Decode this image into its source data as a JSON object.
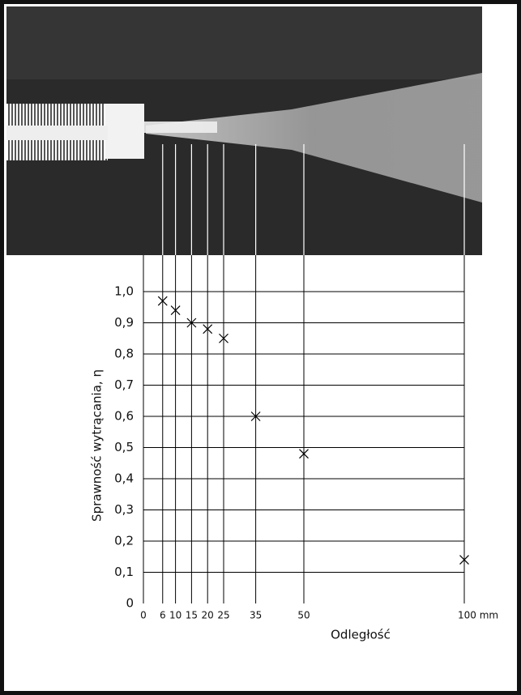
{
  "chart_data": {
    "type": "scatter",
    "x_label": "Odległość",
    "y_label": "Sprawność wytrącania, η",
    "x": [
      6,
      10,
      15,
      20,
      25,
      35,
      50,
      100
    ],
    "values": [
      0.97,
      0.94,
      0.9,
      0.88,
      0.85,
      0.6,
      0.48,
      0.14
    ],
    "color": "#000000",
    "xlim": [
      0,
      100
    ],
    "ylim": [
      0,
      1.0
    ],
    "xticks": [
      0,
      6,
      10,
      15,
      20,
      25,
      35,
      50,
      {
        "value": 100,
        "label": "100 mm"
      }
    ],
    "yticks": [
      0,
      {
        "value": 0.1,
        "label": "0,1"
      },
      {
        "value": 0.2,
        "label": "0,2"
      },
      {
        "value": 0.3,
        "label": "0,3"
      },
      {
        "value": 0.4,
        "label": "0,4"
      },
      {
        "value": 0.5,
        "label": "0,5"
      },
      {
        "value": 0.6,
        "label": "0,6"
      },
      {
        "value": 0.7,
        "label": "0,7"
      },
      {
        "value": 0.8,
        "label": "0,8"
      },
      {
        "value": 0.9,
        "label": "0,9"
      },
      {
        "value": 1.0,
        "label": "1,0"
      }
    ],
    "grid": true
  }
}
